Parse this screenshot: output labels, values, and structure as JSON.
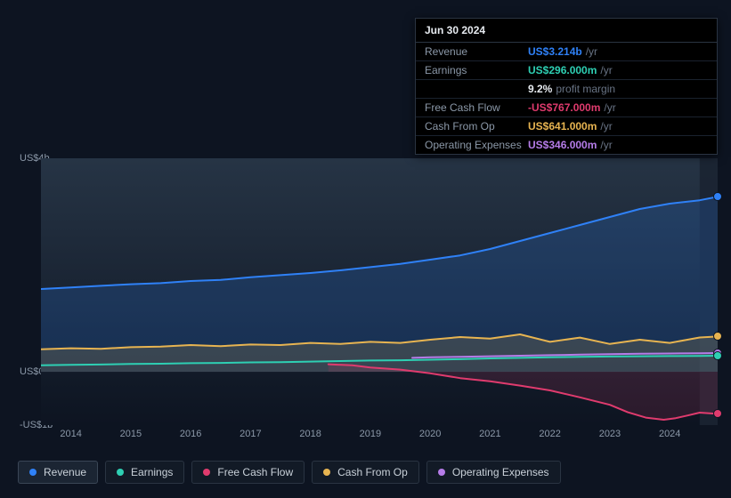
{
  "background_color": "#0d1421",
  "tooltip": {
    "date": "Jun 30 2024",
    "unit_suffix": "/yr",
    "rows": [
      {
        "label": "Revenue",
        "value": "US$3.214b",
        "color": "#2f81f7"
      },
      {
        "label": "Earnings",
        "value": "US$296.000m",
        "color": "#2ecfb3",
        "extra_pct": "9.2%",
        "extra_label": "profit margin"
      },
      {
        "label": "Free Cash Flow",
        "value": "-US$767.000m",
        "color": "#e03b6e"
      },
      {
        "label": "Cash From Op",
        "value": "US$641.000m",
        "color": "#e7b451"
      },
      {
        "label": "Operating Expenses",
        "value": "US$346.000m",
        "color": "#b57ce8"
      }
    ]
  },
  "chart": {
    "type": "area-line",
    "plot_bg_gradient_top": "#263445",
    "plot_bg_gradient_bottom": "#0d1421",
    "grid_color": "#1a2230",
    "y_axis": {
      "min": -1000,
      "max": 4000,
      "ticks": [
        {
          "v": 4000,
          "label": "US$4b"
        },
        {
          "v": 0,
          "label": "US$0"
        },
        {
          "v": -1000,
          "label": "-US$1b"
        }
      ],
      "label_color": "#8b98a8",
      "label_fontsize": 11
    },
    "x_axis": {
      "min": 2013.5,
      "max": 2024.8,
      "ticks": [
        2014,
        2015,
        2016,
        2017,
        2018,
        2019,
        2020,
        2021,
        2022,
        2023,
        2024
      ],
      "label_color": "#8b98a8",
      "label_fontsize": 11
    },
    "forecast_band": {
      "from_x": 2024.5,
      "fill": "#1b2432"
    },
    "series": [
      {
        "id": "revenue",
        "label": "Revenue",
        "color": "#2f81f7",
        "fill": "rgba(47,129,247,0.20)",
        "line_width": 2,
        "active": true,
        "points": [
          [
            2013.5,
            1550
          ],
          [
            2014,
            1580
          ],
          [
            2014.5,
            1610
          ],
          [
            2015,
            1640
          ],
          [
            2015.5,
            1660
          ],
          [
            2016,
            1700
          ],
          [
            2016.5,
            1720
          ],
          [
            2017,
            1770
          ],
          [
            2017.5,
            1810
          ],
          [
            2018,
            1850
          ],
          [
            2018.5,
            1900
          ],
          [
            2019,
            1960
          ],
          [
            2019.5,
            2020
          ],
          [
            2020,
            2100
          ],
          [
            2020.5,
            2180
          ],
          [
            2021,
            2300
          ],
          [
            2021.5,
            2450
          ],
          [
            2022,
            2600
          ],
          [
            2022.5,
            2750
          ],
          [
            2023,
            2900
          ],
          [
            2023.5,
            3050
          ],
          [
            2024,
            3150
          ],
          [
            2024.5,
            3214
          ],
          [
            2024.8,
            3280
          ]
        ]
      },
      {
        "id": "cash_from_op",
        "label": "Cash From Op",
        "color": "#e7b451",
        "fill": "rgba(231,180,81,0.16)",
        "line_width": 2,
        "active": false,
        "points": [
          [
            2013.5,
            420
          ],
          [
            2014,
            440
          ],
          [
            2014.5,
            430
          ],
          [
            2015,
            460
          ],
          [
            2015.5,
            470
          ],
          [
            2016,
            500
          ],
          [
            2016.5,
            480
          ],
          [
            2017,
            510
          ],
          [
            2017.5,
            500
          ],
          [
            2018,
            540
          ],
          [
            2018.5,
            520
          ],
          [
            2019,
            560
          ],
          [
            2019.5,
            540
          ],
          [
            2020,
            600
          ],
          [
            2020.5,
            650
          ],
          [
            2021,
            620
          ],
          [
            2021.5,
            700
          ],
          [
            2022,
            560
          ],
          [
            2022.5,
            640
          ],
          [
            2023,
            520
          ],
          [
            2023.5,
            600
          ],
          [
            2024,
            540
          ],
          [
            2024.5,
            641
          ],
          [
            2024.8,
            660
          ]
        ]
      },
      {
        "id": "op_exp",
        "label": "Operating Expenses",
        "color": "#b57ce8",
        "fill": "none",
        "line_width": 2,
        "active": false,
        "points": [
          [
            2019.7,
            260
          ],
          [
            2020,
            270
          ],
          [
            2020.5,
            280
          ],
          [
            2021,
            290
          ],
          [
            2021.5,
            300
          ],
          [
            2022,
            310
          ],
          [
            2022.5,
            320
          ],
          [
            2023,
            330
          ],
          [
            2023.5,
            338
          ],
          [
            2024,
            342
          ],
          [
            2024.5,
            346
          ],
          [
            2024.8,
            350
          ]
        ]
      },
      {
        "id": "earnings",
        "label": "Earnings",
        "color": "#2ecfb3",
        "fill": "none",
        "line_width": 2,
        "active": false,
        "points": [
          [
            2013.5,
            120
          ],
          [
            2014,
            130
          ],
          [
            2014.5,
            135
          ],
          [
            2015,
            145
          ],
          [
            2015.5,
            150
          ],
          [
            2016,
            160
          ],
          [
            2016.5,
            165
          ],
          [
            2017,
            175
          ],
          [
            2017.5,
            180
          ],
          [
            2018,
            190
          ],
          [
            2018.5,
            200
          ],
          [
            2019,
            210
          ],
          [
            2019.5,
            215
          ],
          [
            2020,
            225
          ],
          [
            2020.5,
            235
          ],
          [
            2021,
            250
          ],
          [
            2021.5,
            260
          ],
          [
            2022,
            270
          ],
          [
            2022.5,
            280
          ],
          [
            2023,
            285
          ],
          [
            2023.5,
            290
          ],
          [
            2024,
            293
          ],
          [
            2024.5,
            296
          ],
          [
            2024.8,
            300
          ]
        ]
      },
      {
        "id": "fcf",
        "label": "Free Cash Flow",
        "color": "#e03b6e",
        "fill": "rgba(224,59,110,0.15)",
        "line_width": 2,
        "active": false,
        "points": [
          [
            2018.3,
            140
          ],
          [
            2018.7,
            120
          ],
          [
            2019,
            80
          ],
          [
            2019.5,
            40
          ],
          [
            2020,
            -30
          ],
          [
            2020.5,
            -120
          ],
          [
            2021,
            -180
          ],
          [
            2021.5,
            -260
          ],
          [
            2022,
            -350
          ],
          [
            2022.5,
            -480
          ],
          [
            2023,
            -620
          ],
          [
            2023.3,
            -760
          ],
          [
            2023.6,
            -860
          ],
          [
            2023.9,
            -900
          ],
          [
            2024.1,
            -870
          ],
          [
            2024.3,
            -820
          ],
          [
            2024.5,
            -767
          ],
          [
            2024.8,
            -790
          ]
        ]
      }
    ],
    "end_markers_x": 2024.8
  },
  "legend_items": [
    {
      "id": "revenue",
      "label": "Revenue",
      "color": "#2f81f7",
      "active": true
    },
    {
      "id": "earnings",
      "label": "Earnings",
      "color": "#2ecfb3",
      "active": false
    },
    {
      "id": "fcf",
      "label": "Free Cash Flow",
      "color": "#e03b6e",
      "active": false
    },
    {
      "id": "cash_from_op",
      "label": "Cash From Op",
      "color": "#e7b451",
      "active": false
    },
    {
      "id": "op_exp",
      "label": "Operating Expenses",
      "color": "#b57ce8",
      "active": false
    }
  ]
}
